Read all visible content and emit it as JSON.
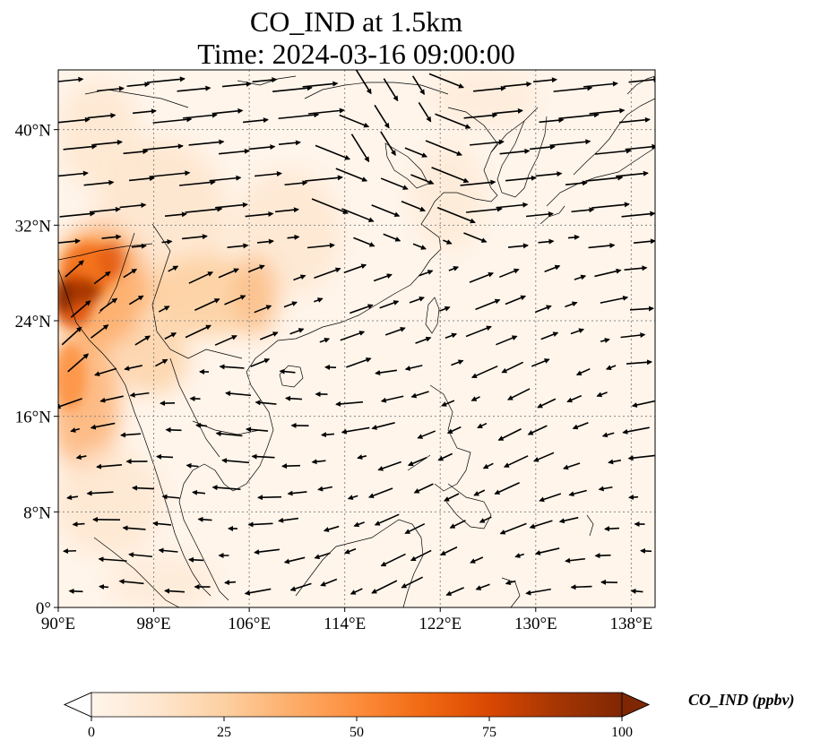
{
  "title": {
    "line1": "CO_IND at 1.5km",
    "line2": "Time: 2024-03-16 09:00:00"
  },
  "map": {
    "extent": {
      "lon": [
        90,
        140
      ],
      "lat": [
        0,
        45
      ]
    },
    "x_ticks": [
      {
        "value": 90,
        "label": "90°E"
      },
      {
        "value": 98,
        "label": "98°E"
      },
      {
        "value": 106,
        "label": "106°E"
      },
      {
        "value": 114,
        "label": "114°E"
      },
      {
        "value": 122,
        "label": "122°E"
      },
      {
        "value": 130,
        "label": "130°E"
      },
      {
        "value": 138,
        "label": "138°E"
      }
    ],
    "y_ticks": [
      {
        "value": 0,
        "label": "0°"
      },
      {
        "value": 8,
        "label": "8°N"
      },
      {
        "value": 16,
        "label": "16°N"
      },
      {
        "value": 24,
        "label": "24°N"
      },
      {
        "value": 32,
        "label": "32°N"
      },
      {
        "value": 40,
        "label": "40°N"
      }
    ],
    "gridlines": true,
    "field_variable": "CO_IND",
    "wind_vectors": true
  },
  "colorbar": {
    "label": "CO_IND (ppbv)",
    "min": 0,
    "max": 100,
    "extend": "both",
    "ticks": [
      {
        "value": 0,
        "label": "0"
      },
      {
        "value": 25,
        "label": "25"
      },
      {
        "value": 50,
        "label": "50"
      },
      {
        "value": 75,
        "label": "75"
      },
      {
        "value": 100,
        "label": "100"
      }
    ],
    "colormap_stops": [
      "#fff5eb",
      "#fee6ce",
      "#fdd0a2",
      "#fdae6b",
      "#fd8d3c",
      "#f16913",
      "#d94801",
      "#a63603",
      "#7f2704"
    ]
  }
}
